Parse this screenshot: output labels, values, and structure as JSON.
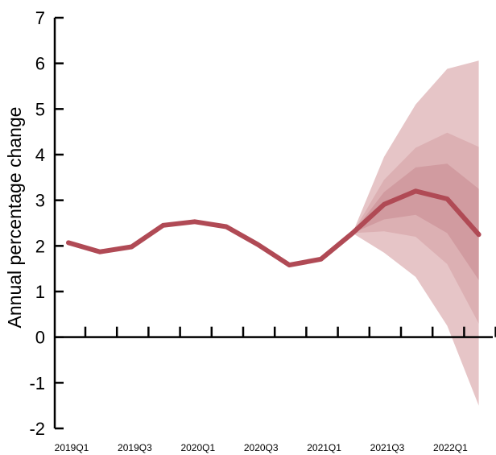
{
  "chart_data": {
    "type": "area",
    "ylabel": "Annual percentage change",
    "ylim": [
      -2,
      7
    ],
    "yticks": [
      "-2",
      "-1",
      "0",
      "1",
      "2",
      "3",
      "4",
      "5",
      "6",
      "7"
    ],
    "x": [
      "2019Q1",
      "2019Q2",
      "2019Q3",
      "2019Q4",
      "2020Q1",
      "2020Q2",
      "2020Q3",
      "2020Q4",
      "2021Q1",
      "2021Q2",
      "2021Q3",
      "2021Q4",
      "2022Q1",
      "2022Q2"
    ],
    "xtick_labels": [
      "2019Q1",
      "2019Q3",
      "2020Q1",
      "2020Q3",
      "2021Q1",
      "2021Q3",
      "2022Q1"
    ],
    "series": [
      {
        "role": "central-projection",
        "color": "#b04a55",
        "values": [
          2.07,
          1.87,
          1.98,
          2.45,
          2.53,
          2.42,
          2.03,
          1.58,
          1.71,
          2.28,
          2.91,
          3.2,
          3.03,
          2.25
        ]
      }
    ],
    "fan_start_index": 9,
    "fan_bands": [
      {
        "color": "#e6c5c7",
        "lower": [
          2.28,
          1.85,
          1.32,
          0.25,
          -1.5
        ],
        "upper": [
          2.28,
          3.95,
          5.1,
          5.88,
          6.06
        ]
      },
      {
        "color": "#dcb0b3",
        "lower": [
          2.28,
          2.32,
          2.2,
          1.6,
          0.3
        ],
        "upper": [
          2.28,
          3.45,
          4.15,
          4.48,
          4.17
        ]
      },
      {
        "color": "#d19ba0",
        "lower": [
          2.28,
          2.58,
          2.68,
          2.28,
          1.25
        ],
        "upper": [
          2.28,
          3.18,
          3.72,
          3.8,
          3.25
        ]
      }
    ],
    "grid": false
  }
}
